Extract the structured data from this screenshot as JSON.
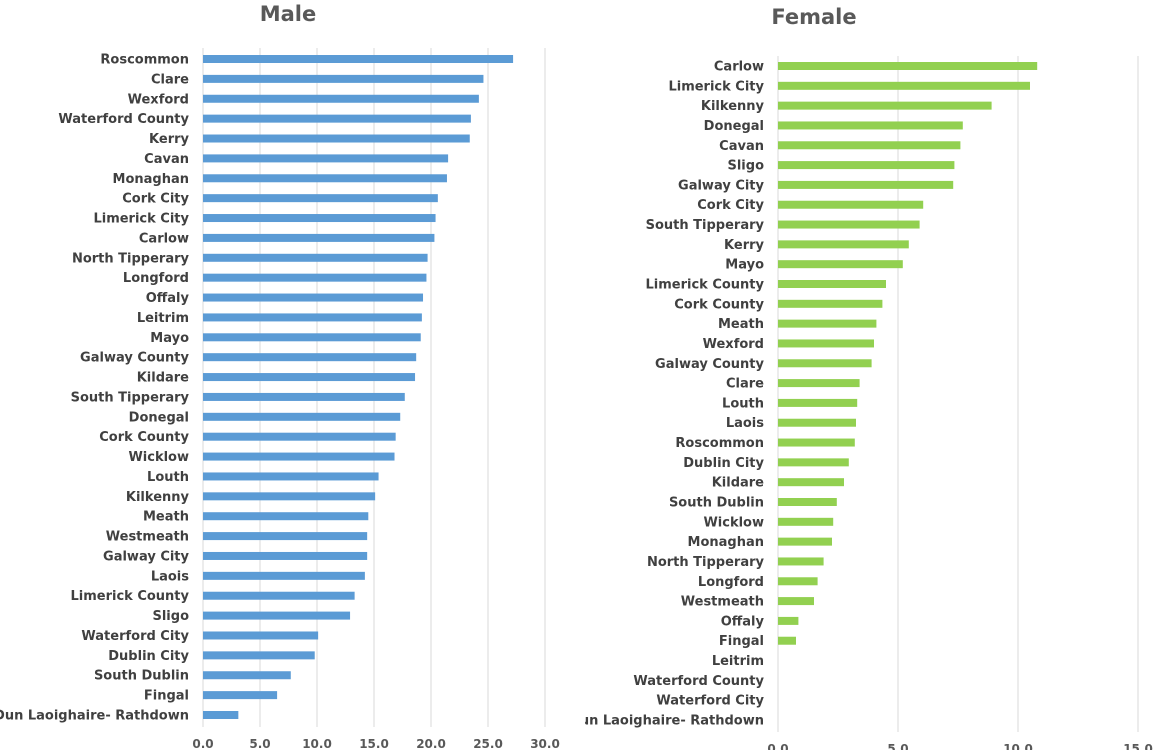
{
  "chart_data": [
    {
      "type": "bar",
      "orientation": "horizontal",
      "title": "Male",
      "color": "#5B9BD5",
      "grid": true,
      "xlim": [
        0,
        30
      ],
      "ticks": [
        "0.0",
        "5.0",
        "10.0",
        "15.0",
        "20.0",
        "25.0",
        "30.0"
      ],
      "categories": [
        "Roscommon",
        "Clare",
        "Wexford",
        "Waterford County",
        "Kerry",
        "Cavan",
        "Monaghan",
        "Cork City",
        "Limerick City",
        "Carlow",
        "North Tipperary",
        "Longford",
        "Offaly",
        "Leitrim",
        "Mayo",
        "Galway County",
        "Kildare",
        "South Tipperary",
        "Donegal",
        "Cork County",
        "Wicklow",
        "Louth",
        "Kilkenny",
        "Meath",
        "Westmeath",
        "Galway City",
        "Laois",
        "Limerick County",
        "Sligo",
        "Waterford City",
        "Dublin City",
        "South Dublin",
        "Fingal",
        "Dun Laoighaire- Rathdown"
      ],
      "values": [
        27.2,
        24.6,
        24.2,
        23.5,
        23.4,
        21.5,
        21.4,
        20.6,
        20.4,
        20.3,
        19.7,
        19.6,
        19.3,
        19.2,
        19.1,
        18.7,
        18.6,
        17.7,
        17.3,
        16.9,
        16.8,
        15.4,
        15.1,
        14.5,
        14.4,
        14.4,
        14.2,
        13.3,
        12.9,
        10.1,
        9.8,
        7.7,
        6.5,
        3.1
      ]
    },
    {
      "type": "bar",
      "orientation": "horizontal",
      "title": "Female",
      "color": "#92D050",
      "grid": true,
      "xlim": [
        0,
        15
      ],
      "ticks": [
        "0.0",
        "5.0",
        "10.0",
        "15.0"
      ],
      "categories": [
        "Carlow",
        "Limerick City",
        "Kilkenny",
        "Donegal",
        "Cavan",
        "Sligo",
        "Galway City",
        "Cork City",
        "South Tipperary",
        "Kerry",
        "Mayo",
        "Limerick County",
        "Cork County",
        "Meath",
        "Wexford",
        "Galway County",
        "Clare",
        "Louth",
        "Laois",
        "Roscommon",
        "Dublin City",
        "Kildare",
        "South Dublin",
        "Wicklow",
        "Monaghan",
        "North Tipperary",
        "Longford",
        "Westmeath",
        "Offaly",
        "Fingal",
        "Leitrim",
        "Waterford County",
        "Waterford City",
        "Dun Laoighaire- Rathdown"
      ],
      "values": [
        10.8,
        10.5,
        8.9,
        7.7,
        7.6,
        7.35,
        7.3,
        6.05,
        5.9,
        5.45,
        5.2,
        4.5,
        4.35,
        4.1,
        4.0,
        3.9,
        3.4,
        3.3,
        3.25,
        3.2,
        2.95,
        2.75,
        2.45,
        2.3,
        2.25,
        1.9,
        1.65,
        1.5,
        0.85,
        0.75,
        0,
        0,
        0,
        0
      ]
    }
  ]
}
